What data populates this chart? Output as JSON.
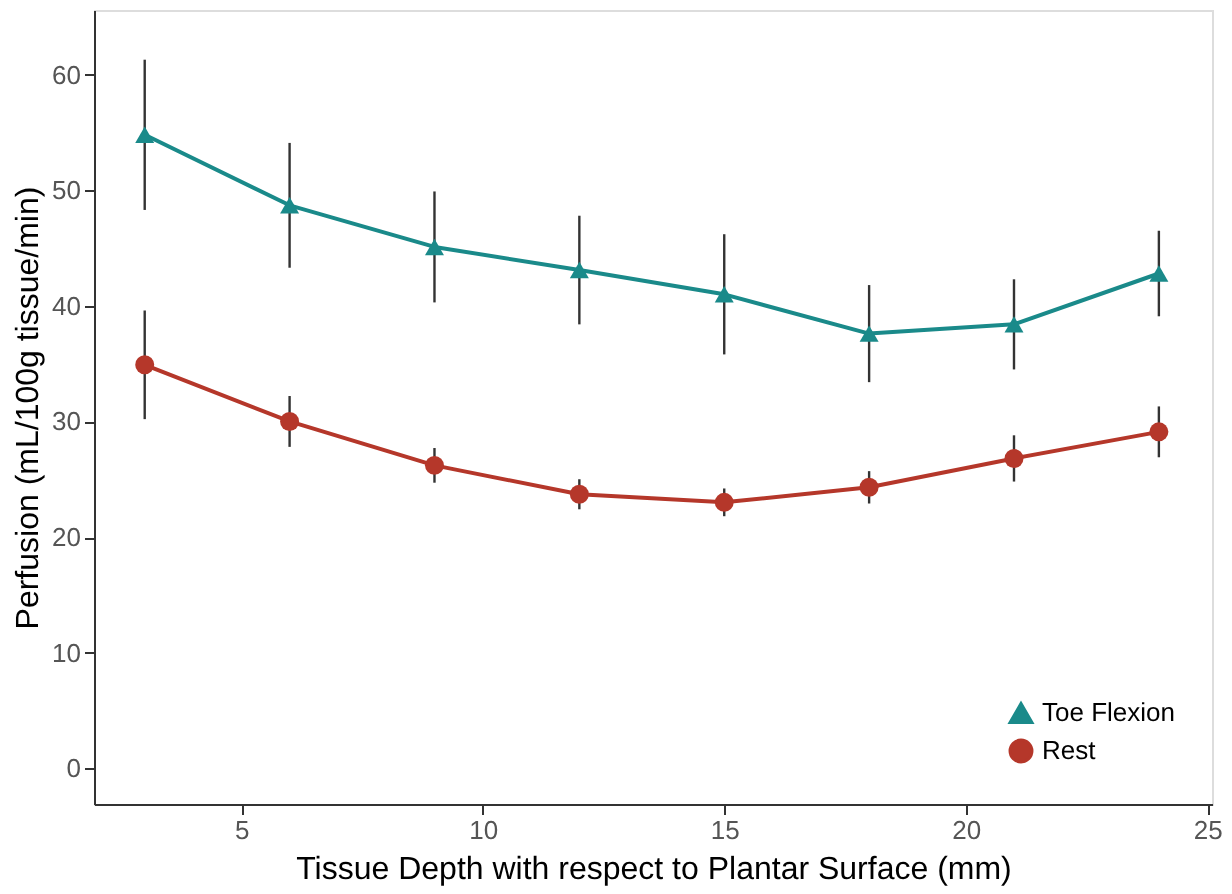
{
  "chart_data": {
    "type": "line",
    "xlabel": "Tissue Depth with respect to Plantar Surface (mm)",
    "ylabel": "Perfusion (mL/100g tissue/min)",
    "x": [
      3,
      6,
      9,
      12,
      15,
      18,
      21,
      24
    ],
    "series": [
      {
        "name": "Toe Flexion",
        "color": "#1a8a8a",
        "marker": "triangle",
        "values": [
          54.8,
          48.7,
          45.1,
          43.1,
          41.0,
          37.6,
          38.4,
          42.8
        ],
        "errors": [
          6.5,
          5.4,
          4.8,
          4.7,
          5.2,
          4.2,
          3.9,
          3.7
        ]
      },
      {
        "name": "Rest",
        "color": "#b5372a",
        "marker": "circle",
        "values": [
          34.9,
          30.0,
          26.2,
          23.7,
          23.0,
          24.3,
          26.8,
          29.1
        ],
        "errors": [
          4.7,
          2.2,
          1.5,
          1.3,
          1.2,
          1.4,
          2.0,
          2.2
        ]
      }
    ],
    "xlim": [
      1.95,
      25.1
    ],
    "xticks": [
      5,
      10,
      15,
      20,
      25
    ],
    "ylim": [
      -3.1,
      65.6
    ],
    "yticks": [
      0,
      10,
      20,
      30,
      40,
      50,
      60
    ],
    "grid": false,
    "legend": "bottom right",
    "line_style": "solid"
  }
}
